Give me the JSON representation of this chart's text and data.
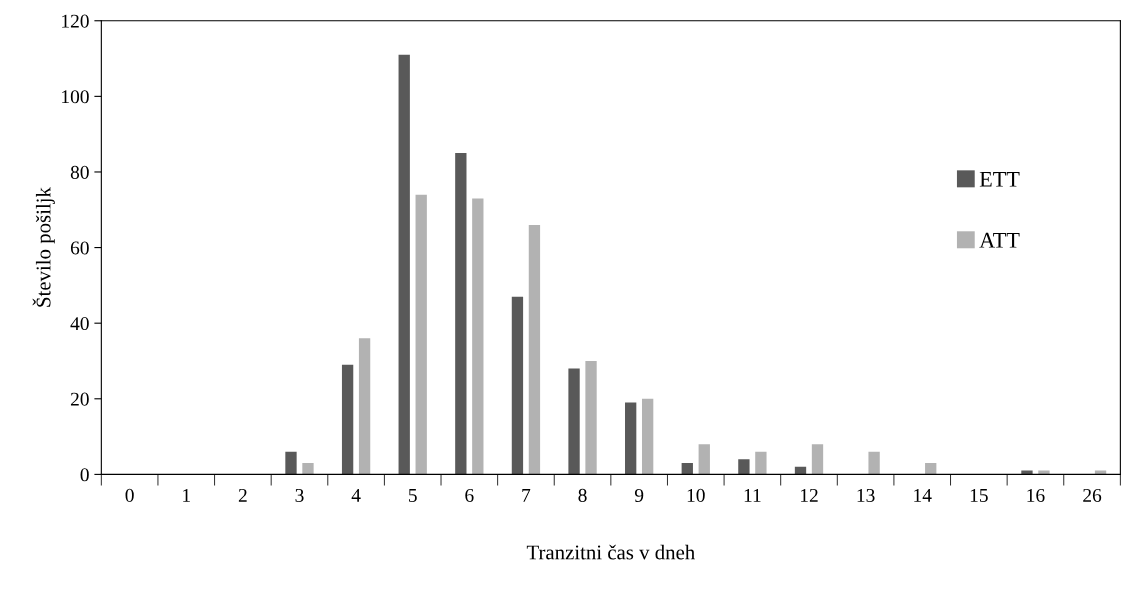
{
  "chart_data": {
    "type": "bar",
    "xlabel": "Tranzitni čas v dneh",
    "ylabel": "Število pošiljk",
    "categories": [
      "0",
      "1",
      "2",
      "3",
      "4",
      "5",
      "6",
      "7",
      "8",
      "9",
      "10",
      "11",
      "12",
      "13",
      "14",
      "15",
      "16",
      "26"
    ],
    "series": [
      {
        "name": "ETT",
        "color": "#595959",
        "values": [
          0,
          0,
          0,
          6,
          29,
          111,
          85,
          47,
          28,
          19,
          3,
          4,
          2,
          0,
          0,
          0,
          1,
          0
        ]
      },
      {
        "name": "ATT",
        "color": "#b2b2b2",
        "values": [
          0,
          0,
          0,
          3,
          36,
          74,
          73,
          66,
          30,
          20,
          8,
          6,
          8,
          6,
          3,
          0,
          1,
          1
        ]
      }
    ],
    "ylim": [
      0,
      120
    ],
    "yticks": [
      0,
      20,
      40,
      60,
      80,
      100,
      120
    ],
    "grid": false,
    "legend": "right"
  }
}
